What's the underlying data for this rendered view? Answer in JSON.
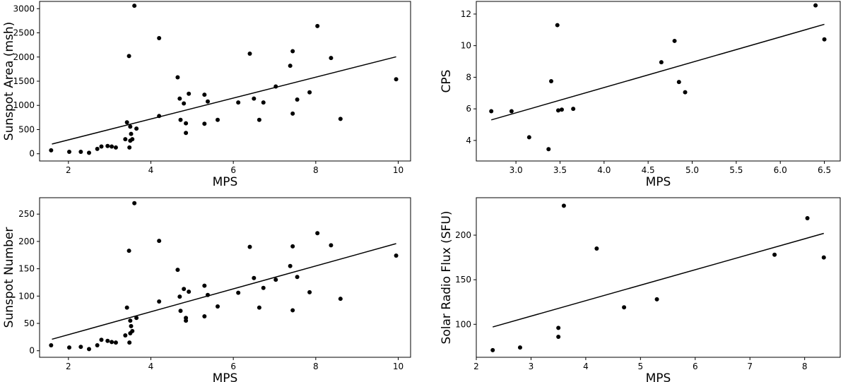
{
  "chart_data": [
    {
      "type": "scatter",
      "xlabel": "MPS",
      "ylabel": "Sunspot Area (msh)",
      "xlim": [
        1.3,
        10.3
      ],
      "ylim": [
        -150,
        3150
      ],
      "xticks": [
        2,
        4,
        6,
        8,
        10
      ],
      "yticks": [
        0,
        500,
        1000,
        1500,
        2000,
        2500,
        3000
      ],
      "fit_line": {
        "x": [
          1.6,
          9.95
        ],
        "y": [
          200,
          2005
        ]
      },
      "points": [
        [
          1.58,
          70
        ],
        [
          2.02,
          40
        ],
        [
          2.3,
          40
        ],
        [
          2.5,
          20
        ],
        [
          2.7,
          100
        ],
        [
          2.8,
          150
        ],
        [
          2.95,
          160
        ],
        [
          3.05,
          150
        ],
        [
          3.15,
          130
        ],
        [
          3.38,
          300
        ],
        [
          3.42,
          650
        ],
        [
          3.48,
          130
        ],
        [
          3.5,
          270
        ],
        [
          3.52,
          410
        ],
        [
          3.5,
          560
        ],
        [
          3.55,
          300
        ],
        [
          3.65,
          520
        ],
        [
          3.47,
          2020
        ],
        [
          3.6,
          3060
        ],
        [
          4.2,
          780
        ],
        [
          4.2,
          2390
        ],
        [
          4.65,
          1580
        ],
        [
          4.7,
          1140
        ],
        [
          4.72,
          700
        ],
        [
          4.8,
          1040
        ],
        [
          4.85,
          630
        ],
        [
          4.85,
          430
        ],
        [
          4.92,
          1240
        ],
        [
          5.3,
          1220
        ],
        [
          5.3,
          620
        ],
        [
          5.38,
          1080
        ],
        [
          5.62,
          700
        ],
        [
          6.12,
          1060
        ],
        [
          6.4,
          2070
        ],
        [
          6.5,
          1140
        ],
        [
          6.63,
          700
        ],
        [
          6.73,
          1060
        ],
        [
          7.03,
          1390
        ],
        [
          7.38,
          1820
        ],
        [
          7.44,
          2120
        ],
        [
          7.44,
          830
        ],
        [
          7.55,
          1120
        ],
        [
          7.85,
          1270
        ],
        [
          8.04,
          2640
        ],
        [
          8.37,
          1980
        ],
        [
          8.6,
          720
        ],
        [
          9.95,
          1540
        ]
      ]
    },
    {
      "type": "scatter",
      "xlabel": "MPS",
      "ylabel": "CPS",
      "xlim": [
        2.55,
        6.68
      ],
      "ylim": [
        2.7,
        12.8
      ],
      "xticks": [
        3.0,
        3.5,
        4.0,
        4.5,
        5.0,
        5.5,
        6.0,
        6.5
      ],
      "yticks": [
        4,
        6,
        8,
        10,
        12
      ],
      "fit_line": {
        "x": [
          2.72,
          6.5
        ],
        "y": [
          5.3,
          11.35
        ]
      },
      "points": [
        [
          2.72,
          5.85
        ],
        [
          2.95,
          5.85
        ],
        [
          3.15,
          4.2
        ],
        [
          3.37,
          3.45
        ],
        [
          3.4,
          7.75
        ],
        [
          3.47,
          11.3
        ],
        [
          3.48,
          5.9
        ],
        [
          3.52,
          5.95
        ],
        [
          3.65,
          6.0
        ],
        [
          4.65,
          8.95
        ],
        [
          4.8,
          10.3
        ],
        [
          4.85,
          7.7
        ],
        [
          4.92,
          7.05
        ],
        [
          6.4,
          12.55
        ],
        [
          6.5,
          10.4
        ]
      ]
    },
    {
      "type": "scatter",
      "xlabel": "MPS",
      "ylabel": "Sunspot Number",
      "xlim": [
        1.3,
        10.3
      ],
      "ylim": [
        -12,
        280
      ],
      "xticks": [
        2,
        4,
        6,
        8,
        10
      ],
      "yticks": [
        0,
        50,
        100,
        150,
        200,
        250
      ],
      "fit_line": {
        "x": [
          1.6,
          9.95
        ],
        "y": [
          21,
          196
        ]
      },
      "points": [
        [
          1.58,
          10
        ],
        [
          2.02,
          6
        ],
        [
          2.3,
          7
        ],
        [
          2.5,
          3
        ],
        [
          2.7,
          10
        ],
        [
          2.8,
          20
        ],
        [
          2.95,
          18
        ],
        [
          3.05,
          16
        ],
        [
          3.15,
          15
        ],
        [
          3.38,
          28
        ],
        [
          3.42,
          79
        ],
        [
          3.48,
          15
        ],
        [
          3.5,
          32
        ],
        [
          3.52,
          45
        ],
        [
          3.5,
          55
        ],
        [
          3.55,
          36
        ],
        [
          3.65,
          60
        ],
        [
          3.47,
          183
        ],
        [
          3.6,
          270
        ],
        [
          4.2,
          90
        ],
        [
          4.2,
          201
        ],
        [
          4.65,
          148
        ],
        [
          4.7,
          99
        ],
        [
          4.72,
          73
        ],
        [
          4.8,
          113
        ],
        [
          4.85,
          60
        ],
        [
          4.85,
          55
        ],
        [
          4.92,
          108
        ],
        [
          5.3,
          119
        ],
        [
          5.3,
          63
        ],
        [
          5.38,
          102
        ],
        [
          5.62,
          81
        ],
        [
          6.12,
          106
        ],
        [
          6.4,
          190
        ],
        [
          6.5,
          133
        ],
        [
          6.63,
          79
        ],
        [
          6.73,
          115
        ],
        [
          7.03,
          130
        ],
        [
          7.38,
          155
        ],
        [
          7.44,
          191
        ],
        [
          7.44,
          74
        ],
        [
          7.55,
          135
        ],
        [
          7.85,
          107
        ],
        [
          8.04,
          215
        ],
        [
          8.37,
          193
        ],
        [
          8.6,
          95
        ],
        [
          9.95,
          174
        ]
      ]
    },
    {
      "type": "scatter",
      "xlabel": "MPS",
      "ylabel": "Solar Radio Flux (SFU)",
      "xlim": [
        2.0,
        8.65
      ],
      "ylim": [
        63,
        242
      ],
      "xticks": [
        2,
        3,
        4,
        5,
        6,
        7,
        8
      ],
      "yticks": [
        100,
        150,
        200
      ],
      "fit_line": {
        "x": [
          2.3,
          8.35
        ],
        "y": [
          97,
          202
        ]
      },
      "points": [
        [
          2.3,
          71
        ],
        [
          2.8,
          74
        ],
        [
          3.5,
          96
        ],
        [
          3.5,
          86
        ],
        [
          3.6,
          233
        ],
        [
          4.2,
          185
        ],
        [
          4.7,
          119
        ],
        [
          5.3,
          128
        ],
        [
          7.45,
          178
        ],
        [
          8.05,
          219
        ],
        [
          8.35,
          175
        ]
      ]
    }
  ]
}
